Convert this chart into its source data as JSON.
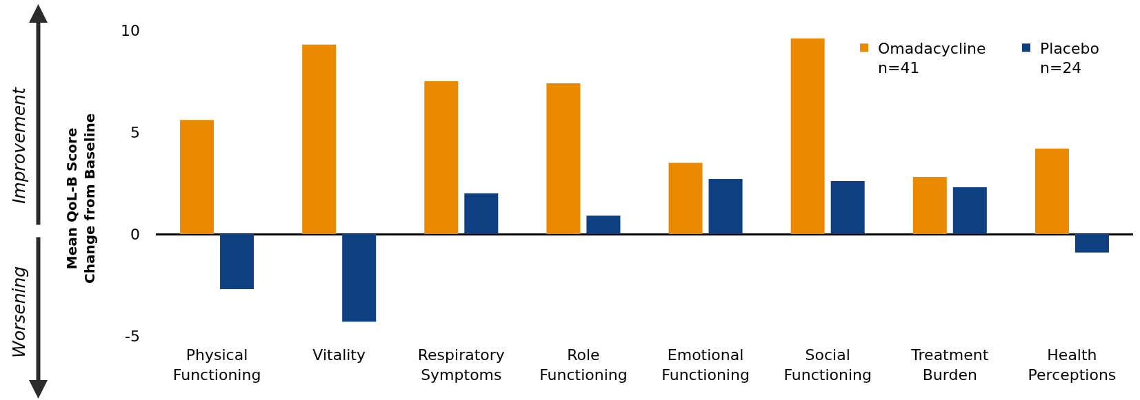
{
  "chart_data": {
    "type": "bar",
    "ylabel": "Mean QoL-B Score\nChange from Baseline",
    "annotations": [
      "Improvement",
      "Worsening"
    ],
    "categories": [
      "Physical\nFunctioning",
      "Vitality",
      "Respiratory\nSymptoms",
      "Role\nFunctioning",
      "Emotional\nFunctioning",
      "Social\nFunctioning",
      "Treatment\nBurden",
      "Health\nPerceptions"
    ],
    "series": [
      {
        "name": "Omadacycline\nn=41",
        "color": "#ea8a00",
        "values": [
          5.6,
          9.3,
          7.5,
          7.4,
          3.5,
          9.6,
          2.8,
          4.2
        ]
      },
      {
        "name": "Placebo\nn=24",
        "color": "#0e3f80",
        "values": [
          -2.7,
          -4.3,
          2.0,
          0.9,
          2.7,
          2.6,
          2.3,
          -0.9
        ]
      }
    ],
    "ylim": [
      -5,
      10
    ],
    "yticks": [
      -5,
      0,
      5,
      10
    ],
    "legend": "top right"
  }
}
